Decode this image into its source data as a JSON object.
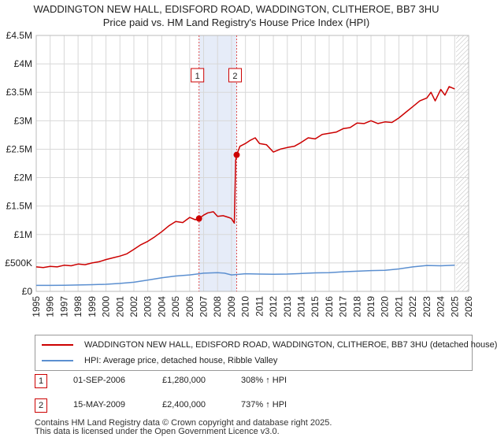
{
  "header": {
    "title_line1": "WADDINGTON NEW HALL, EDISFORD ROAD, WADDINGTON, CLITHEROE, BB7 3HU",
    "title_line2": "Price paid vs. HM Land Registry's House Price Index (HPI)"
  },
  "colors": {
    "property": "#cc0000",
    "hpi": "#5b8fd0",
    "shade": "#e6ecf8",
    "grid": "#d8d8d8",
    "marker_line": "#e05050"
  },
  "chart_data": {
    "type": "line",
    "title": "WADDINGTON NEW HALL, EDISFORD ROAD, WADDINGTON, CLITHEROE, BB7 3HU",
    "subtitle": "Price paid vs. HM Land Registry's House Price Index (HPI)",
    "xlabel": "",
    "ylabel": "",
    "xlim": [
      1995,
      2026
    ],
    "ylim": [
      0,
      4500000
    ],
    "grid": true,
    "x_ticks": [
      1995,
      1996,
      1997,
      1998,
      1999,
      2000,
      2001,
      2002,
      2003,
      2004,
      2005,
      2006,
      2007,
      2008,
      2009,
      2010,
      2011,
      2012,
      2013,
      2014,
      2015,
      2016,
      2017,
      2018,
      2019,
      2020,
      2021,
      2022,
      2023,
      2024,
      2025,
      2026
    ],
    "y_ticks": [
      {
        "value": 0,
        "label": "£0"
      },
      {
        "value": 500000,
        "label": "£500K"
      },
      {
        "value": 1000000,
        "label": "£1M"
      },
      {
        "value": 1500000,
        "label": "£1.5M"
      },
      {
        "value": 2000000,
        "label": "£2M"
      },
      {
        "value": 2500000,
        "label": "£2.5M"
      },
      {
        "value": 3000000,
        "label": "£3M"
      },
      {
        "value": 3500000,
        "label": "£3.5M"
      },
      {
        "value": 4000000,
        "label": "£4M"
      },
      {
        "value": 4500000,
        "label": "£4.5M"
      }
    ],
    "shaded_range": [
      2006.67,
      2009.37
    ],
    "future_hatch_from": 2025.1,
    "series": [
      {
        "name": "WADDINGTON NEW HALL, EDISFORD ROAD, WADDINGTON, CLITHEROE, BB7 3HU (detached house)",
        "color": "#cc0000",
        "x": [
          1995.0,
          1995.5,
          1996.0,
          1996.5,
          1997.0,
          1997.5,
          1998.0,
          1998.5,
          1999.0,
          1999.5,
          2000.0,
          2000.5,
          2001.0,
          2001.5,
          2002.0,
          2002.5,
          2003.0,
          2003.5,
          2004.0,
          2004.5,
          2005.0,
          2005.5,
          2006.0,
          2006.4,
          2006.67,
          2007.0,
          2007.3,
          2007.7,
          2008.0,
          2008.4,
          2008.8,
          2009.0,
          2009.2,
          2009.3,
          2009.37,
          2009.6,
          2010.0,
          2010.3,
          2010.7,
          2011.0,
          2011.5,
          2012.0,
          2012.5,
          2013.0,
          2013.5,
          2014.0,
          2014.5,
          2015.0,
          2015.5,
          2016.0,
          2016.5,
          2017.0,
          2017.5,
          2018.0,
          2018.5,
          2019.0,
          2019.5,
          2020.0,
          2020.5,
          2021.0,
          2021.5,
          2022.0,
          2022.5,
          2023.0,
          2023.3,
          2023.6,
          2024.0,
          2024.3,
          2024.6,
          2025.0
        ],
        "y": [
          430000,
          420000,
          440000,
          430000,
          460000,
          450000,
          480000,
          470000,
          500000,
          520000,
          560000,
          590000,
          620000,
          660000,
          740000,
          820000,
          880000,
          960000,
          1050000,
          1150000,
          1230000,
          1210000,
          1300000,
          1260000,
          1280000,
          1340000,
          1380000,
          1400000,
          1320000,
          1330000,
          1300000,
          1280000,
          1200000,
          2300000,
          2400000,
          2550000,
          2600000,
          2650000,
          2700000,
          2600000,
          2580000,
          2450000,
          2500000,
          2530000,
          2550000,
          2620000,
          2700000,
          2680000,
          2760000,
          2780000,
          2800000,
          2860000,
          2880000,
          2960000,
          2950000,
          3000000,
          2950000,
          2980000,
          2970000,
          3050000,
          3150000,
          3250000,
          3350000,
          3400000,
          3500000,
          3350000,
          3550000,
          3450000,
          3600000,
          3560000
        ]
      },
      {
        "name": "HPI: Average price, detached house, Ribble Valley",
        "color": "#5b8fd0",
        "x": [
          1995,
          1996,
          1997,
          1998,
          1999,
          2000,
          2001,
          2002,
          2003,
          2004,
          2005,
          2006,
          2007,
          2008,
          2008.5,
          2009,
          2010,
          2011,
          2012,
          2013,
          2014,
          2015,
          2016,
          2017,
          2018,
          2019,
          2020,
          2021,
          2022,
          2023,
          2024,
          2025
        ],
        "y": [
          105000,
          105000,
          108000,
          112000,
          118000,
          125000,
          140000,
          160000,
          200000,
          240000,
          270000,
          290000,
          320000,
          330000,
          320000,
          290000,
          310000,
          305000,
          300000,
          305000,
          315000,
          325000,
          330000,
          345000,
          355000,
          365000,
          370000,
          395000,
          430000,
          455000,
          450000,
          460000
        ]
      }
    ],
    "transactions": [
      {
        "id": "1",
        "date": "01-SEP-2006",
        "price": "£1,280,000",
        "hpi_change": "308% ↑ HPI",
        "x": 2006.67,
        "y": 1280000
      },
      {
        "id": "2",
        "date": "15-MAY-2009",
        "price": "£2,400,000",
        "hpi_change": "737% ↑ HPI",
        "x": 2009.37,
        "y": 2400000
      }
    ]
  },
  "legend": {
    "property_label": "WADDINGTON NEW HALL, EDISFORD ROAD, WADDINGTON, CLITHEROE, BB7 3HU (detached house)",
    "hpi_label": "HPI: Average price, detached house, Ribble Valley"
  },
  "table": {
    "rows": [
      {
        "id": "1",
        "date": "01-SEP-2006",
        "price": "£1,280,000",
        "hpi": "308% ↑ HPI"
      },
      {
        "id": "2",
        "date": "15-MAY-2009",
        "price": "£2,400,000",
        "hpi": "737% ↑ HPI"
      }
    ]
  },
  "footer": {
    "line1": "Contains HM Land Registry data © Crown copyright and database right 2025.",
    "line2": "This data is licensed under the Open Government Licence v3.0."
  }
}
